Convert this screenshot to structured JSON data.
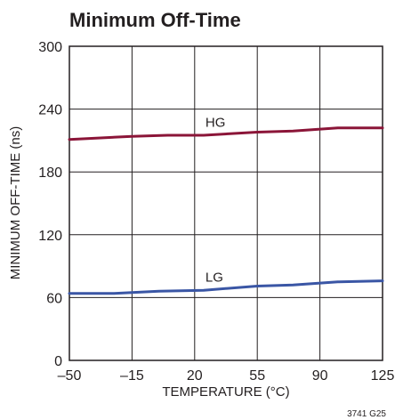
{
  "chart_data": {
    "type": "line",
    "title": "Minimum Off-Time",
    "xlabel": "TEMPERATURE (°C)",
    "ylabel": "MINIMUM OFF-TIME (ns)",
    "xlim": [
      -50,
      125
    ],
    "ylim": [
      0,
      300
    ],
    "xticks": [
      -50,
      -15,
      20,
      55,
      90,
      125
    ],
    "xtick_labels": [
      "–50",
      "–15",
      "20",
      "55",
      "90",
      "125"
    ],
    "yticks": [
      0,
      60,
      120,
      180,
      240,
      300
    ],
    "ytick_labels": [
      "0",
      "60",
      "120",
      "180",
      "240",
      "300"
    ],
    "grid": true,
    "series": [
      {
        "name": "HG",
        "color": "#8b1538",
        "x": [
          -50,
          -15,
          5,
          25,
          55,
          75,
          100,
          125
        ],
        "y": [
          211,
          214,
          215,
          215,
          218,
          219,
          222,
          222
        ]
      },
      {
        "name": "LG",
        "color": "#3a56a5",
        "x": [
          -50,
          -25,
          0,
          25,
          55,
          75,
          100,
          125
        ],
        "y": [
          64,
          64,
          66,
          67,
          71,
          72,
          75,
          76
        ]
      }
    ],
    "figure_id": "3741 G25"
  }
}
